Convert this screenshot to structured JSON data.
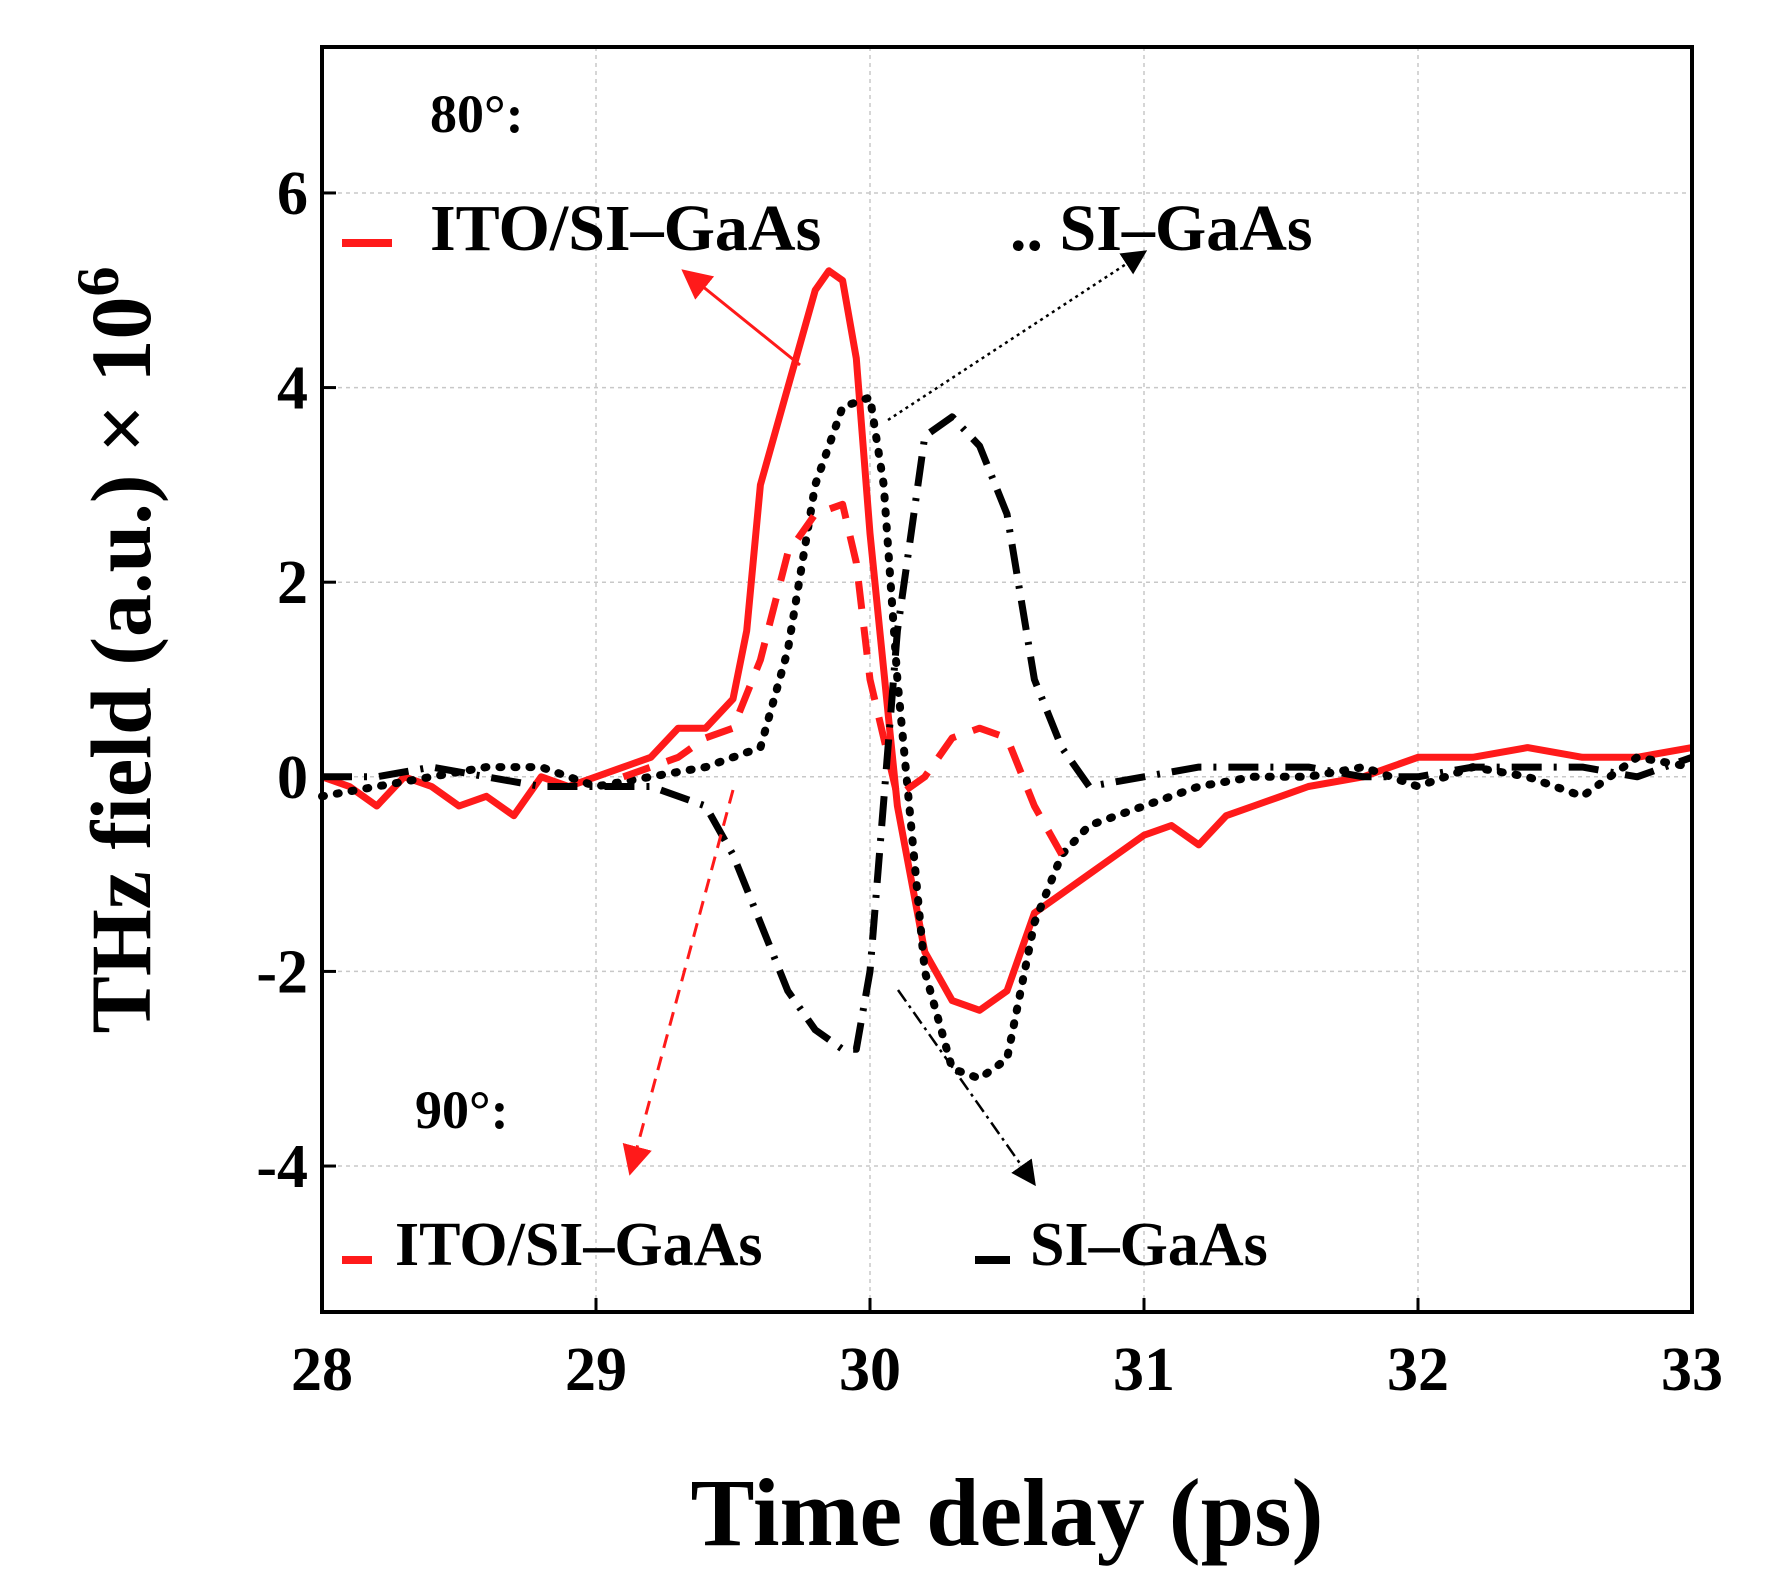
{
  "chart_data": {
    "type": "line",
    "title": "",
    "xlabel": "Time delay (ps)",
    "ylabel": "THz field (a.u.) × 10",
    "ylabel_exponent": "6",
    "xlim": [
      28,
      33
    ],
    "ylim": [
      -5.5,
      7.5
    ],
    "xticks": [
      28,
      29,
      30,
      31,
      32,
      33
    ],
    "yticks": [
      -4,
      -2,
      0,
      2,
      4,
      6
    ],
    "grid": true,
    "annotations": {
      "group_80": "80°:",
      "group_90": "90°:",
      "legend_80_ito": "ITO/SI–GaAs",
      "legend_80_si": ".. SI–GaAs",
      "legend_90_ito": "ITO/SI–GaAs",
      "legend_90_si": "SI–GaAs"
    },
    "colors": {
      "red": "#ff1a1a",
      "black": "#000000"
    },
    "series": [
      {
        "name": "80° ITO/SI–GaAs",
        "style": "solid",
        "color": "#ff1a1a",
        "x": [
          28.0,
          28.1,
          28.2,
          28.3,
          28.4,
          28.5,
          28.6,
          28.7,
          28.8,
          28.9,
          29.0,
          29.1,
          29.2,
          29.3,
          29.4,
          29.5,
          29.55,
          29.6,
          29.7,
          29.8,
          29.85,
          29.9,
          29.95,
          30.0,
          30.1,
          30.2,
          30.3,
          30.4,
          30.5,
          30.6,
          30.7,
          30.8,
          30.9,
          31.0,
          31.1,
          31.2,
          31.3,
          31.4,
          31.5,
          31.6,
          31.8,
          32.0,
          32.2,
          32.4,
          32.6,
          32.8,
          33.0
        ],
        "y": [
          0.0,
          -0.1,
          -0.3,
          0.0,
          -0.1,
          -0.3,
          -0.2,
          -0.4,
          0.0,
          -0.1,
          0.0,
          0.1,
          0.2,
          0.5,
          0.5,
          0.8,
          1.5,
          3.0,
          4.0,
          5.0,
          5.2,
          5.1,
          4.3,
          2.5,
          -0.3,
          -1.8,
          -2.3,
          -2.4,
          -2.2,
          -1.4,
          -1.2,
          -1.0,
          -0.8,
          -0.6,
          -0.5,
          -0.7,
          -0.4,
          -0.3,
          -0.2,
          -0.1,
          0.0,
          0.2,
          0.2,
          0.3,
          0.2,
          0.2,
          0.3
        ]
      },
      {
        "name": "80° SI–GaAs",
        "style": "dotted",
        "color": "#000000",
        "x": [
          28.0,
          28.2,
          28.4,
          28.6,
          28.8,
          29.0,
          29.2,
          29.4,
          29.5,
          29.6,
          29.7,
          29.8,
          29.9,
          30.0,
          30.05,
          30.1,
          30.2,
          30.3,
          30.4,
          30.5,
          30.6,
          30.7,
          30.8,
          31.0,
          31.2,
          31.4,
          31.6,
          31.8,
          32.0,
          32.2,
          32.4,
          32.6,
          32.8,
          33.0
        ],
        "y": [
          -0.2,
          -0.1,
          0.0,
          0.1,
          0.1,
          -0.1,
          0.0,
          0.1,
          0.2,
          0.3,
          1.3,
          3.0,
          3.8,
          3.9,
          3.0,
          1.0,
          -2.0,
          -3.0,
          -3.1,
          -2.9,
          -1.5,
          -0.8,
          -0.5,
          -0.3,
          -0.1,
          0.0,
          0.0,
          0.1,
          -0.1,
          0.1,
          0.0,
          -0.2,
          0.2,
          0.1
        ]
      },
      {
        "name": "90° ITO/SI–GaAs",
        "style": "dashed",
        "color": "#ff1a1a",
        "x": [
          29.1,
          29.2,
          29.3,
          29.4,
          29.5,
          29.6,
          29.7,
          29.8,
          29.9,
          29.95,
          30.0,
          30.1,
          30.2,
          30.3,
          30.4,
          30.5,
          30.6,
          30.7
        ],
        "y": [
          0.0,
          0.1,
          0.2,
          0.4,
          0.5,
          1.2,
          2.3,
          2.7,
          2.8,
          2.2,
          1.0,
          -0.2,
          0.0,
          0.4,
          0.5,
          0.4,
          -0.3,
          -0.8
        ]
      },
      {
        "name": "90° SI–GaAs",
        "style": "dashdot",
        "color": "#000000",
        "x": [
          28.0,
          28.2,
          28.4,
          28.6,
          28.8,
          29.0,
          29.2,
          29.4,
          29.5,
          29.6,
          29.7,
          29.8,
          29.9,
          29.95,
          30.0,
          30.1,
          30.2,
          30.3,
          30.4,
          30.5,
          30.6,
          30.7,
          30.8,
          31.0,
          31.2,
          31.4,
          31.6,
          31.8,
          32.0,
          32.2,
          32.4,
          32.6,
          32.8,
          33.0
        ],
        "y": [
          0.0,
          0.0,
          0.1,
          0.0,
          -0.1,
          -0.1,
          -0.1,
          -0.3,
          -0.8,
          -1.5,
          -2.2,
          -2.6,
          -2.8,
          -2.8,
          -2.0,
          1.5,
          3.5,
          3.7,
          3.4,
          2.7,
          1.0,
          0.3,
          -0.1,
          0.0,
          0.1,
          0.1,
          0.1,
          0.0,
          0.0,
          0.1,
          0.1,
          0.1,
          0.0,
          0.2
        ]
      }
    ]
  }
}
